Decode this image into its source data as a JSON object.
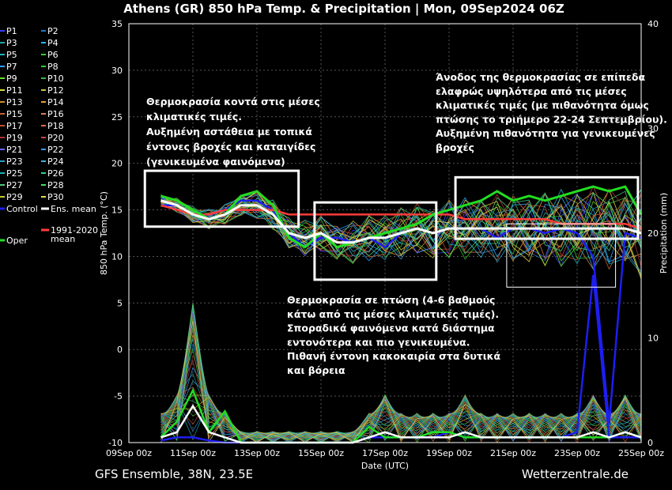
{
  "title": "Athens  (GR)  850 hPa Temp. & Precipitation | Mon, 09Sep2024 06Z",
  "footer_left": "GFS Ensemble, 38N, 23.5E",
  "footer_right": "Wetterzentrale.de",
  "colors": {
    "background": "#000000",
    "control": "#1e1ef0",
    "ens_mean": "#ffffff",
    "oper": "#22dd22",
    "climate_mean": "#ff3c3c",
    "box": "#ffffff"
  },
  "legend": {
    "members": [
      "P1",
      "P2",
      "P3",
      "P4",
      "P5",
      "P6",
      "P7",
      "P8",
      "P9",
      "P10",
      "P11",
      "P12",
      "P13",
      "P14",
      "P15",
      "P16",
      "P17",
      "P18",
      "P19",
      "P20",
      "P21",
      "P22",
      "P23",
      "P24",
      "P25",
      "P26",
      "P27",
      "P28",
      "P29",
      "P30"
    ],
    "member_colors": [
      "#3c3cff",
      "#1e78d2",
      "#22a5a5",
      "#28b4ff",
      "#19b4c8",
      "#3cc83c",
      "#2aa0ff",
      "#32c832",
      "#66dd22",
      "#3cb43c",
      "#dcdc3c",
      "#d2be46",
      "#d28c28",
      "#e6a03c",
      "#c86432",
      "#d28250",
      "#c85028",
      "#dc6e46",
      "#b43232",
      "#c84646",
      "#6464ff",
      "#3c96e6",
      "#28a0c8",
      "#3cb4dc",
      "#14b4b4",
      "#32d28c",
      "#50c878",
      "#46dc64",
      "#c8c828",
      "#e6dc50"
    ],
    "control_label": "Control",
    "ens_mean_label": "Ens. mean",
    "oper_label": "Oper",
    "climate_label_line1": "1991-2020",
    "climate_label_line2": "mean"
  },
  "annotations": {
    "box1": [
      "Θερμοκρασία κοντά στις μέσες",
      "κλιματικές τιμές.",
      "Αυξημένη αστάθεια με τοπικά",
      "έντονες βροχές και καταιγίδες",
      "(γενικευμένα φαινόμενα)"
    ],
    "box2": [
      "Θερμοκρασία σε πτώση (4-6 βαθμούς",
      "κάτω από τις μέσες κλιματικές τιμές).",
      "Σποραδικά φαινόμενα κατά διάστημα",
      "εντονότερα και πιο γενικευμένα.",
      "Πιθανή έντονη κακοκαιρία στα δυτικά",
      "και βόρεια"
    ],
    "box3": [
      "Άνοδος της θερμοκρασίας σε επίπεδα",
      "ελαφρώς υψηλότερα από τις μέσες",
      "κλιματικές τιμές (με πιθανότητα όμως",
      "πτώσης το τριήμερο 22-24 Σεπτεμβρίου).",
      "Αυξημένη πιθανότητα για γενικευμένες",
      "βροχές"
    ]
  },
  "chart_data": {
    "type": "line",
    "xlabel": "Date (UTC)",
    "ylabel": "850 hPa Temp. (°C)",
    "y2label": "Precipitation (mm)",
    "xlim_days": [
      0,
      16
    ],
    "x_ticks": [
      "09Sep 00z",
      "11Sep 00z",
      "13Sep 00z",
      "15Sep 00z",
      "17Sep 00z",
      "19Sep 00z",
      "21Sep 00z",
      "23Sep 00z",
      "25Sep 00z"
    ],
    "x_tick_days": [
      0,
      2,
      4,
      6,
      8,
      10,
      12,
      14,
      16
    ],
    "ylim": [
      -10,
      35
    ],
    "y_ticks": [
      -10,
      -5,
      0,
      5,
      10,
      15,
      20,
      25,
      30,
      35
    ],
    "y2lim": [
      0,
      40
    ],
    "y2_ticks": [
      0,
      10,
      20,
      30,
      40
    ],
    "grid": true,
    "days": [
      1.0,
      1.5,
      2.0,
      2.5,
      3.0,
      3.5,
      4.0,
      4.5,
      5.0,
      5.5,
      6.0,
      6.5,
      7.0,
      7.5,
      8.0,
      8.5,
      9.0,
      9.5,
      10.0,
      10.5,
      11.0,
      11.5,
      12.0,
      12.5,
      13.0,
      13.5,
      14.0,
      14.5,
      15.0,
      15.5,
      16.0
    ],
    "series": [
      {
        "name": "Control",
        "color": "#1e1ef0",
        "values": [
          15.5,
          15.5,
          14.5,
          14.5,
          15.0,
          16.0,
          16.0,
          15.0,
          12.5,
          11.0,
          12.0,
          12.0,
          11.5,
          12.0,
          11.0,
          12.5,
          13.0,
          12.5,
          13.0,
          13.0,
          13.0,
          12.0,
          13.0,
          13.0,
          12.5,
          13.0,
          12.5,
          10.0,
          -8.0,
          12.5,
          12.0
        ]
      },
      {
        "name": "Ens. mean",
        "color": "#ffffff",
        "values": [
          16.0,
          15.5,
          14.5,
          14.0,
          14.5,
          15.5,
          15.5,
          14.5,
          12.5,
          12.0,
          12.5,
          11.5,
          11.5,
          12.0,
          12.0,
          12.5,
          13.0,
          12.5,
          13.0,
          13.0,
          13.0,
          13.0,
          13.0,
          13.0,
          13.0,
          13.0,
          13.0,
          13.0,
          13.0,
          13.0,
          12.5
        ]
      },
      {
        "name": "Oper",
        "color": "#22dd22",
        "values": [
          16.5,
          16.0,
          15.0,
          14.0,
          14.5,
          16.5,
          17.0,
          15.5,
          12.0,
          11.0,
          12.5,
          11.0,
          11.5,
          12.0,
          12.5,
          13.0,
          13.5,
          14.5,
          15.0,
          15.5,
          16.0,
          17.0,
          16.0,
          16.5,
          16.0,
          16.5,
          17.0,
          17.5,
          17.0,
          17.5,
          14.5
        ]
      },
      {
        "name": "1991-2020 mean",
        "color": "#ff3c3c",
        "values": [
          15.5,
          15.0,
          14.5,
          14.5,
          15.0,
          15.0,
          15.0,
          15.0,
          14.5,
          14.5,
          14.5,
          14.5,
          14.5,
          14.5,
          14.5,
          14.5,
          14.5,
          14.5,
          14.5,
          14.0,
          14.0,
          14.0,
          14.0,
          14.0,
          14.0,
          13.5,
          13.5,
          13.5,
          13.5,
          13.5,
          13.0
        ]
      }
    ],
    "precip_mean_mm": [
      0.5,
      1.0,
      3.5,
      1.0,
      0.5,
      0.0,
      0.0,
      0.0,
      0.0,
      0.0,
      0.0,
      0.0,
      0.0,
      0.5,
      1.0,
      0.5,
      0.5,
      0.5,
      0.5,
      1.0,
      0.5,
      0.5,
      0.5,
      0.5,
      0.5,
      0.5,
      0.5,
      1.0,
      0.5,
      1.0,
      0.5
    ],
    "precip_oper_mm": [
      0.5,
      2.0,
      5.0,
      1.0,
      3.0,
      0.0,
      0.0,
      0.0,
      0.0,
      0.0,
      0.0,
      0.0,
      0.0,
      1.5,
      0.5,
      0.5,
      0.5,
      1.0,
      1.0,
      0.5,
      0.5,
      0.5,
      0.5,
      0.5,
      0.5,
      0.5,
      0.5,
      0.5,
      0.5,
      1.0,
      0.5
    ],
    "precip_control_mm": [
      0.2,
      0.5,
      0.5,
      0.2,
      0.0,
      0.0,
      0.0,
      0.0,
      0.0,
      0.0,
      0.0,
      0.0,
      0.0,
      0.5,
      0.5,
      0.5,
      0.5,
      0.5,
      1.0,
      0.5,
      0.5,
      0.5,
      0.5,
      0.5,
      0.5,
      0.5,
      1.0,
      16.0,
      0.5,
      0.5,
      0.5
    ],
    "highlight_boxes": [
      {
        "name": "period-1",
        "x": [
          0.5,
          5.3
        ],
        "y": [
          13.2,
          19.2
        ]
      },
      {
        "name": "period-2",
        "x": [
          5.8,
          9.6
        ],
        "y": [
          7.5,
          15.8
        ]
      },
      {
        "name": "period-3",
        "x": [
          10.2,
          15.9
        ],
        "y": [
          11.9,
          18.5
        ]
      }
    ]
  }
}
